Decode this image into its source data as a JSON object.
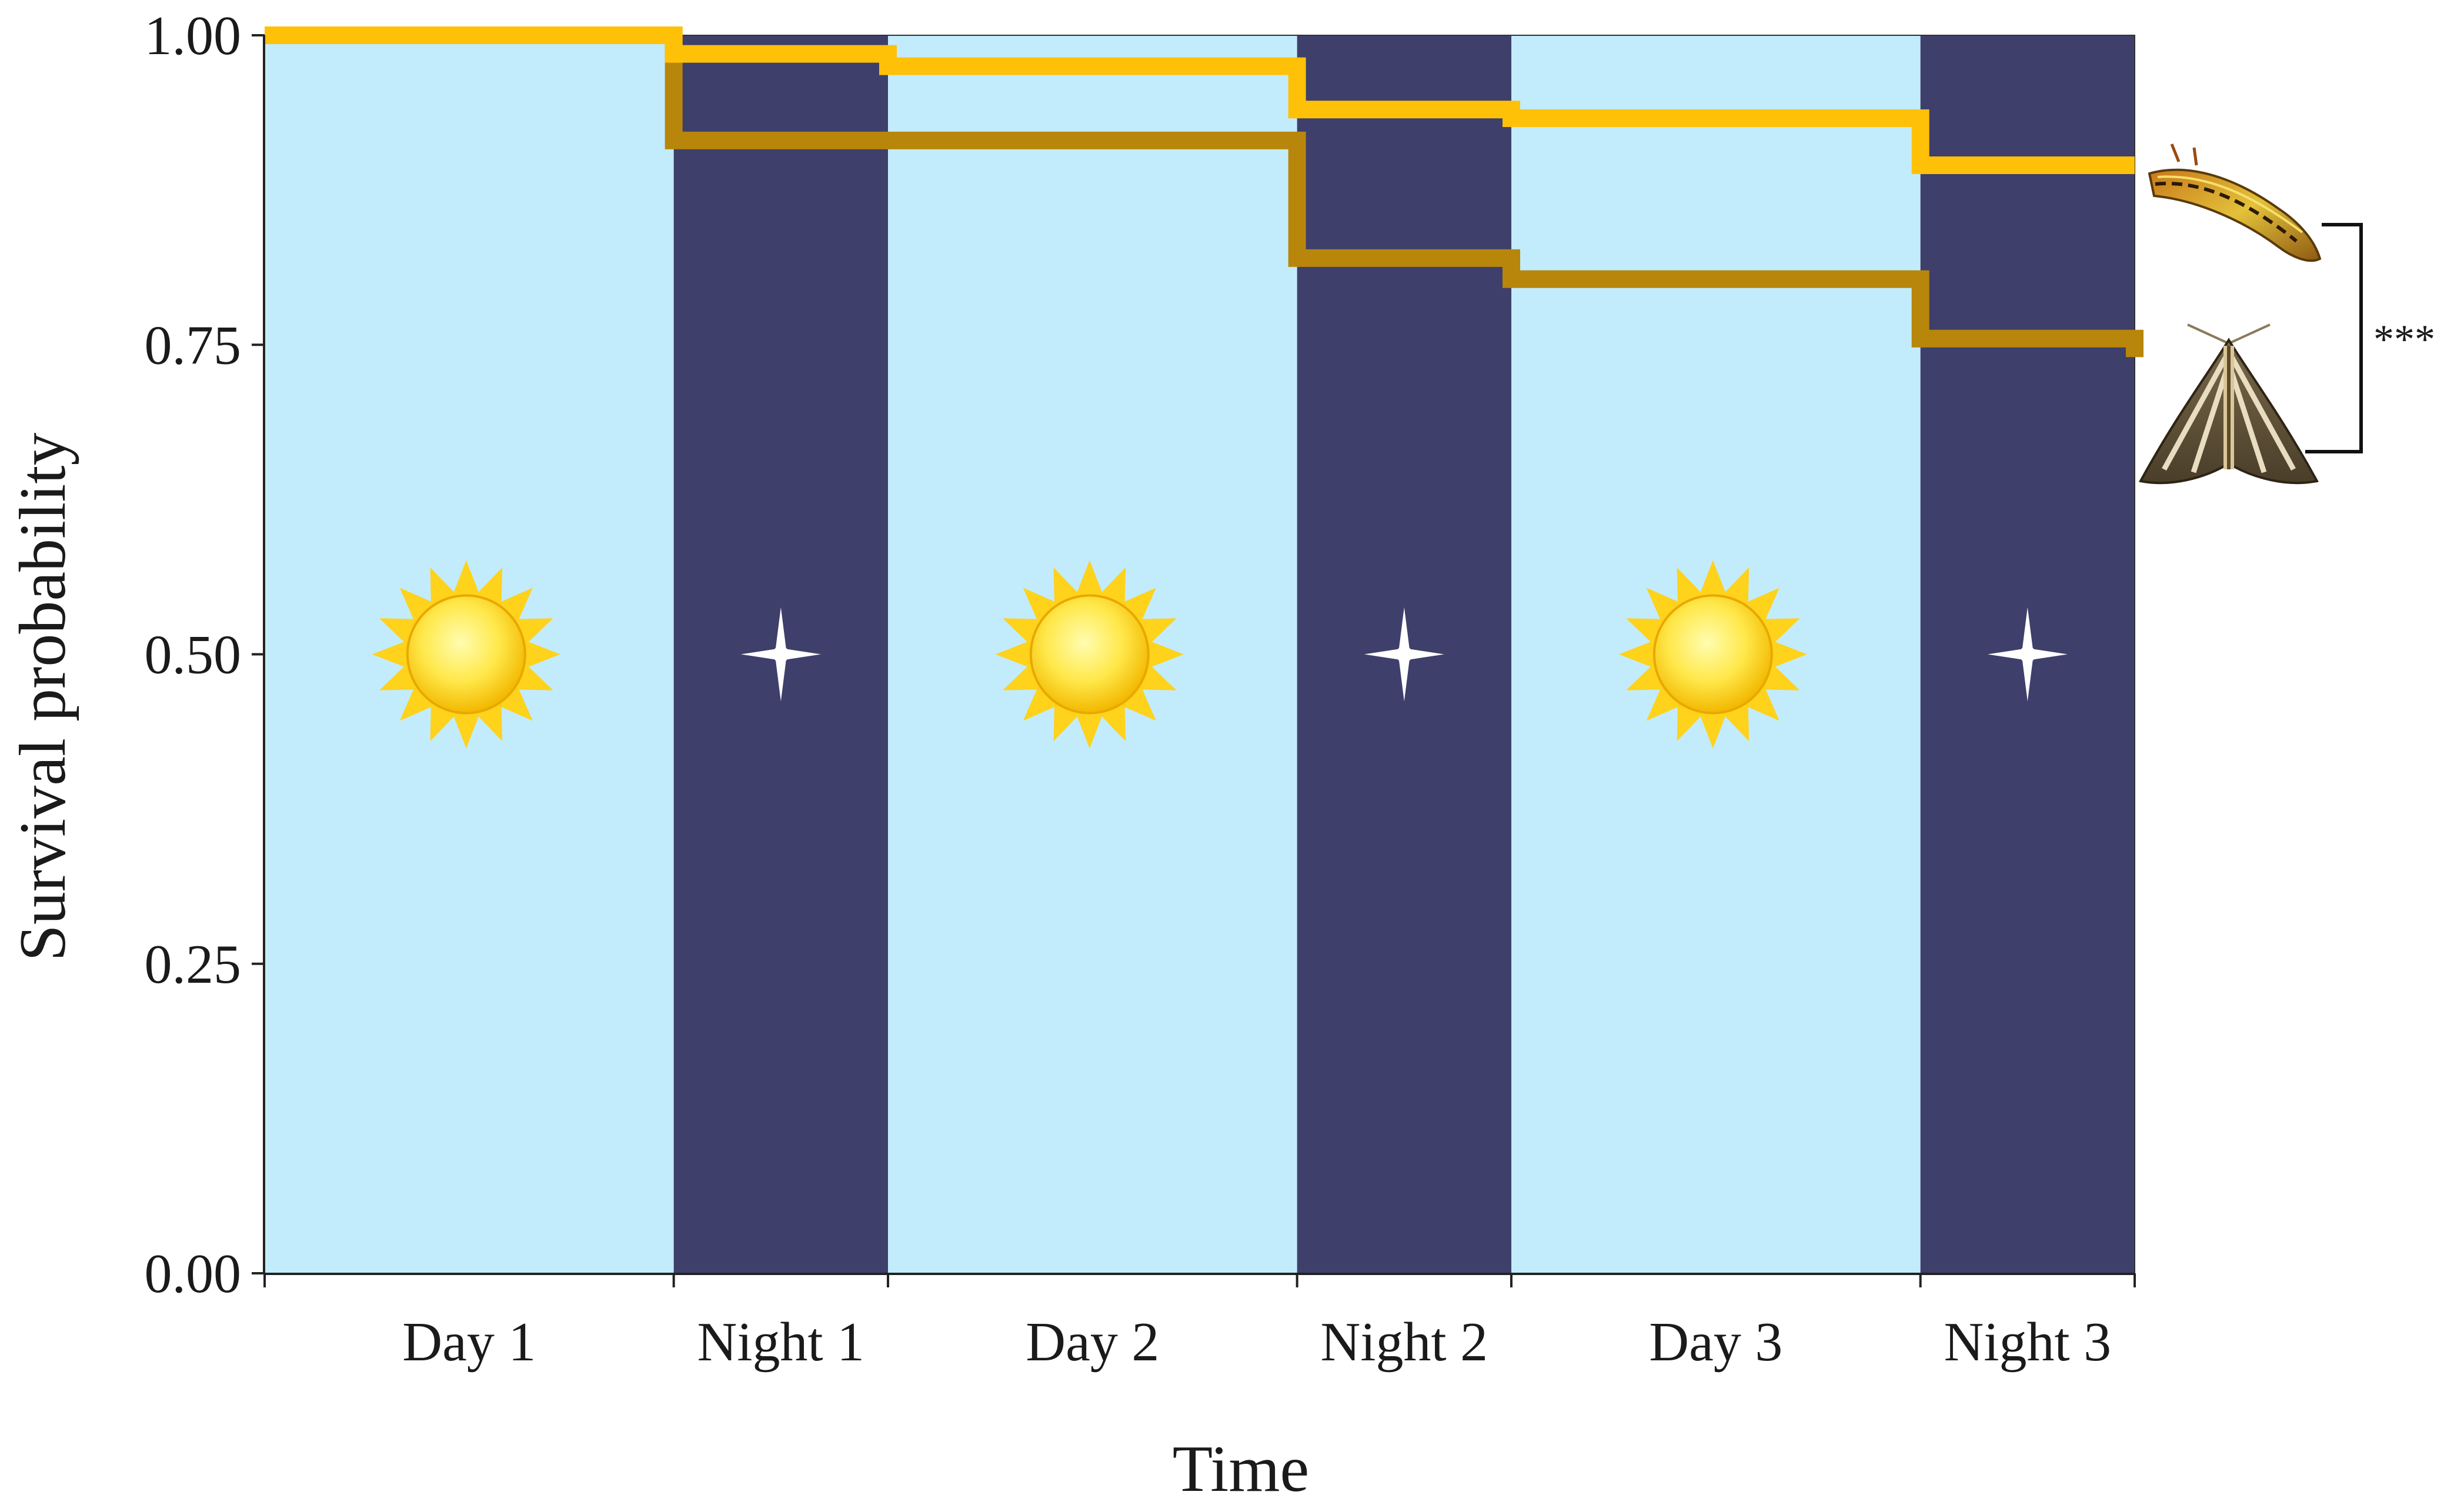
{
  "chart_data": {
    "type": "line",
    "step": true,
    "title": "",
    "xlabel": "Time",
    "ylabel": "Survival probability",
    "xlim": [
      0,
      3
    ],
    "ylim": [
      0,
      1
    ],
    "yticks": [
      0.0,
      0.25,
      0.5,
      0.75,
      1.0
    ],
    "ytick_labels": [
      "0.00",
      "0.25",
      "0.50",
      "0.75",
      "1.00"
    ],
    "periods": [
      {
        "label": "Day 1",
        "kind": "day",
        "start": 0,
        "end": 0.6563
      },
      {
        "label": "Night 1",
        "kind": "night",
        "start": 0.6563,
        "end": 1.0
      },
      {
        "label": "Day 2",
        "kind": "day",
        "start": 1.0,
        "end": 1.6563
      },
      {
        "label": "Night 2",
        "kind": "night",
        "start": 1.6563,
        "end": 2.0
      },
      {
        "label": "Day 3",
        "kind": "day",
        "start": 2.0,
        "end": 2.6563
      },
      {
        "label": "Night 3",
        "kind": "night",
        "start": 2.6563,
        "end": 3.0
      }
    ],
    "series": [
      {
        "color": "#FFC107",
        "icon": "caterpillar-icon",
        "x": [
          0,
          0.6563,
          1.0,
          1.6563,
          2.0,
          2.6563,
          3.0
        ],
        "y": [
          1.0,
          0.985,
          0.975,
          0.94,
          0.933,
          0.895,
          0.895
        ]
      },
      {
        "color": "#B8860B",
        "icon": "moth-icon",
        "x": [
          0,
          0.6563,
          1.6563,
          2.0,
          2.6563,
          3.0
        ],
        "y": [
          1.0,
          0.915,
          0.82,
          0.803,
          0.755,
          0.74
        ]
      }
    ],
    "significance": "***",
    "grid": false,
    "legend": "none"
  },
  "colors": {
    "day": "#C2ECFC",
    "night": "#3E3F6B",
    "sun": "#FFD21C",
    "star": "#FFFFFF"
  }
}
